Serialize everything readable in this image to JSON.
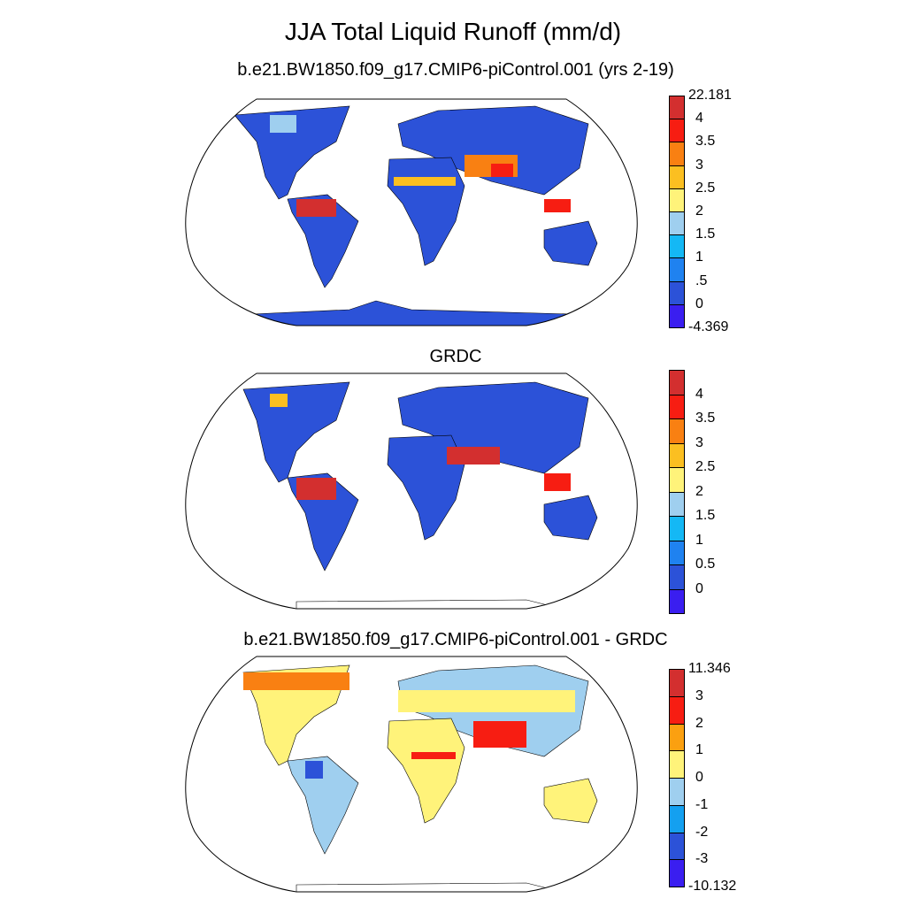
{
  "title": "JJA Total Liquid Runoff (mm/d)",
  "panels": [
    {
      "subtitle": "b.e21.BW1850.f09_g17.CMIP6-piControl.001 (yrs 2-19)",
      "colorbar": {
        "colors": [
          "#3a1ef0",
          "#2c52d8",
          "#1f82f0",
          "#14b8f5",
          "#9fcfef",
          "#fff37a",
          "#fbbf21",
          "#f98012",
          "#f71d12",
          "#d32f2f"
        ],
        "labels": [
          "-4.369",
          "0",
          ".5",
          "1",
          "1.5",
          "2",
          "2.5",
          "3",
          "3.5",
          "4",
          "22.181"
        ],
        "endpoint_labels": true
      }
    },
    {
      "subtitle": "GRDC",
      "colorbar": {
        "colors": [
          "#3a1ef0",
          "#2c52d8",
          "#1f82f0",
          "#14b8f5",
          "#9fcfef",
          "#fff37a",
          "#fbbf21",
          "#f98012",
          "#f71d12",
          "#d32f2f"
        ],
        "labels": [
          "0",
          "0.5",
          "1",
          "1.5",
          "2",
          "2.5",
          "3",
          "3.5",
          "4"
        ],
        "endpoint_labels": false
      }
    },
    {
      "subtitle": "b.e21.BW1850.f09_g17.CMIP6-piControl.001 - GRDC",
      "colorbar": {
        "colors": [
          "#3a1ef0",
          "#2c52d8",
          "#14a0f0",
          "#9fcfef",
          "#fff37a",
          "#fba010",
          "#f71d12",
          "#d32f2f"
        ],
        "labels": [
          "-10.132",
          "-3",
          "-2",
          "-1",
          "0",
          "1",
          "2",
          "3",
          "11.346"
        ],
        "endpoint_labels": true
      }
    }
  ]
}
